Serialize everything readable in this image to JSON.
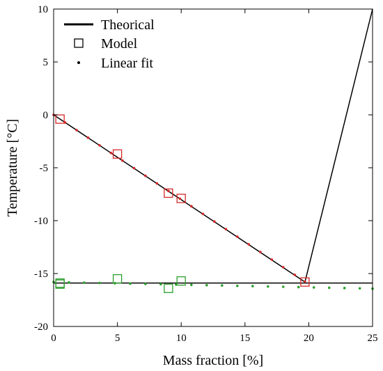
{
  "chart_data": {
    "type": "line",
    "xlabel": "Mass fraction [%]",
    "ylabel": "Temperature [°C]",
    "xlim": [
      0,
      25
    ],
    "ylim": [
      -20,
      10
    ],
    "x_ticks": [
      0,
      5,
      10,
      15,
      20,
      25
    ],
    "y_ticks": [
      -20,
      -15,
      -10,
      -5,
      0,
      5,
      10
    ],
    "grid": false,
    "legend_position": "top-left",
    "legend": [
      {
        "label": "Theorical",
        "marker": "line"
      },
      {
        "label": "Model",
        "marker": "square"
      },
      {
        "label": "Linear fit",
        "marker": "dot"
      }
    ],
    "series": [
      {
        "name": "Theorical",
        "style": "line",
        "color": "#000000",
        "points": [
          [
            0,
            0
          ],
          [
            19.7,
            -15.8
          ],
          [
            25,
            10
          ]
        ]
      },
      {
        "name": "Theorical",
        "style": "line",
        "color": "#000000",
        "points": [
          [
            0,
            -15.9
          ],
          [
            25,
            -15.9
          ]
        ]
      },
      {
        "name": "Model",
        "style": "square",
        "color": "#d62728",
        "points": [
          [
            0.5,
            -0.4
          ],
          [
            5,
            -3.7
          ],
          [
            9,
            -7.4
          ],
          [
            10,
            -7.9
          ],
          [
            19.7,
            -15.8
          ]
        ]
      },
      {
        "name": "Model",
        "style": "square",
        "color": "#2ca02c",
        "points": [
          [
            0.5,
            -16.0
          ],
          [
            0.5,
            -15.9
          ],
          [
            5,
            -15.5
          ],
          [
            9,
            -16.4
          ],
          [
            10,
            -15.7
          ]
        ]
      },
      {
        "name": "Linear fit",
        "style": "dot",
        "color": "#d62728",
        "x": [
          0,
          0.9,
          1.8,
          2.7,
          3.6,
          4.5,
          5.4,
          6.3,
          7.2,
          8.1,
          9.0,
          9.9,
          10.8,
          11.7,
          12.6,
          13.5,
          14.4,
          15.3,
          16.2,
          17.1,
          18.0,
          18.9,
          19.7
        ],
        "y": [
          0,
          -0.72,
          -1.44,
          -2.16,
          -2.88,
          -3.6,
          -4.32,
          -5.04,
          -5.76,
          -6.48,
          -7.2,
          -7.92,
          -8.64,
          -9.36,
          -10.08,
          -10.8,
          -11.52,
          -12.24,
          -12.96,
          -13.68,
          -14.4,
          -15.12,
          -15.76
        ]
      },
      {
        "name": "Linear fit",
        "style": "dot",
        "color": "#2ca02c",
        "x": [
          0,
          1.2,
          2.4,
          3.6,
          4.8,
          6.0,
          7.2,
          8.4,
          9.6,
          10.8,
          12.0,
          13.2,
          14.4,
          15.6,
          16.8,
          18.0,
          19.2,
          20.4,
          21.6,
          22.8,
          24.0,
          25.0
        ],
        "y": [
          -15.8,
          -15.83,
          -15.86,
          -15.89,
          -15.92,
          -15.95,
          -15.98,
          -16.01,
          -16.04,
          -16.07,
          -16.1,
          -16.13,
          -16.16,
          -16.19,
          -16.22,
          -16.25,
          -16.28,
          -16.31,
          -16.34,
          -16.37,
          -16.4,
          -16.43
        ]
      }
    ]
  }
}
